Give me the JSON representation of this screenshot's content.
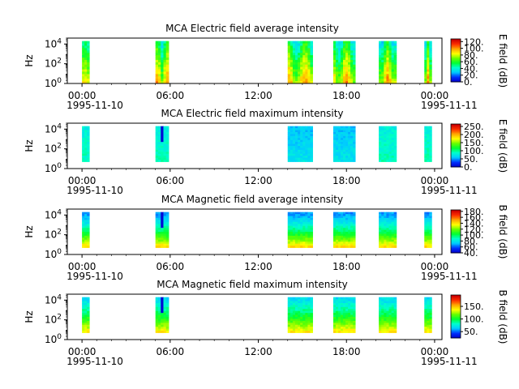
{
  "figure": {
    "date_start": "1995-11-10",
    "date_end": "1995-11-11"
  },
  "chart_data": [
    {
      "type": "heatmap",
      "title": "MCA  Electric field average intensity",
      "ylabel": "Hz",
      "ylim": [
        1,
        40000
      ],
      "y_scale": "log",
      "y_ticks": [
        "10^0",
        "10^2",
        "10^4"
      ],
      "x_ticks": [
        "00:00",
        "06:00",
        "12:00",
        "18:00",
        "00:00"
      ],
      "xlim_hours": [
        -1,
        24.5
      ],
      "colorbar_label": "E field (dB)",
      "colorbar_ticks": [
        "0.",
        "20.",
        "40.",
        "60.",
        "80.",
        "100.",
        "120."
      ],
      "colorbar_range": [
        0,
        128
      ],
      "colormap": [
        "#0000cc",
        "#0033ff",
        "#00ccff",
        "#00ffcc",
        "#00ff33",
        "#66ff00",
        "#ffff00",
        "#ffaa00",
        "#ff3300",
        "#cc0000"
      ],
      "data_segments_hours": [
        [
          0,
          0.5
        ],
        [
          5.0,
          5.9
        ],
        [
          14.0,
          15.7
        ],
        [
          17.1,
          18.6
        ],
        [
          20.2,
          21.4
        ],
        [
          23.3,
          23.8
        ]
      ],
      "texture": "avg-e"
    },
    {
      "type": "heatmap",
      "title": "MCA  Electric field maximum intensity",
      "ylabel": "Hz",
      "ylim": [
        1,
        40000
      ],
      "y_scale": "log",
      "y_ticks": [
        "10^0",
        "10^2",
        "10^4"
      ],
      "x_ticks": [
        "00:00",
        "06:00",
        "12:00",
        "18:00",
        "00:00"
      ],
      "xlim_hours": [
        -1,
        24.5
      ],
      "colorbar_label": "E field (dB)",
      "colorbar_ticks": [
        "0.",
        "50.",
        "100.",
        "150.",
        "200.",
        "250."
      ],
      "colorbar_range": [
        0,
        265
      ],
      "colormap": [
        "#0000cc",
        "#0033ff",
        "#00ccff",
        "#00ffcc",
        "#00ff33",
        "#66ff00",
        "#ffff00",
        "#ffaa00",
        "#ff3300",
        "#cc0000"
      ],
      "data_segments_hours": [
        [
          0,
          0.5
        ],
        [
          5.0,
          5.9
        ],
        [
          14.0,
          15.7
        ],
        [
          17.1,
          18.6
        ],
        [
          20.2,
          21.4
        ],
        [
          23.3,
          23.8
        ]
      ],
      "texture": "max-e"
    },
    {
      "type": "heatmap",
      "title": "MCA  Magnetic field average intensity",
      "ylabel": "Hz",
      "ylim": [
        1,
        40000
      ],
      "y_scale": "log",
      "y_ticks": [
        "10^0",
        "10^2",
        "10^4"
      ],
      "x_ticks": [
        "00:00",
        "06:00",
        "12:00",
        "18:00",
        "00:00"
      ],
      "xlim_hours": [
        -1,
        24.5
      ],
      "colorbar_label": "B field (dB)",
      "colorbar_ticks": [
        "40.",
        "60.",
        "80.",
        "100.",
        "120.",
        "140.",
        "160.",
        "180."
      ],
      "colorbar_range": [
        40,
        185
      ],
      "colormap": [
        "#0000cc",
        "#0033ff",
        "#00ccff",
        "#00ffcc",
        "#00ff33",
        "#66ff00",
        "#ffff00",
        "#ffaa00",
        "#ff3300",
        "#cc0000"
      ],
      "data_segments_hours": [
        [
          0,
          0.5
        ],
        [
          5.0,
          5.9
        ],
        [
          14.0,
          15.7
        ],
        [
          17.1,
          18.6
        ],
        [
          20.2,
          21.4
        ],
        [
          23.3,
          23.8
        ]
      ],
      "texture": "avg-b"
    },
    {
      "type": "heatmap",
      "title": "MCA  Magnetic field maximum intensity",
      "ylabel": "Hz",
      "ylim": [
        1,
        40000
      ],
      "y_scale": "log",
      "y_ticks": [
        "10^0",
        "10^2",
        "10^4"
      ],
      "x_ticks": [
        "00:00",
        "06:00",
        "12:00",
        "18:00",
        "00:00"
      ],
      "xlim_hours": [
        -1,
        24.5
      ],
      "colorbar_label": "B field (dB)",
      "colorbar_ticks": [
        "50.",
        "100.",
        "150."
      ],
      "colorbar_range": [
        25,
        195
      ],
      "colormap": [
        "#0000cc",
        "#0033ff",
        "#00ccff",
        "#00ffcc",
        "#00ff33",
        "#66ff00",
        "#ffff00",
        "#ffaa00",
        "#ff3300",
        "#cc0000"
      ],
      "data_segments_hours": [
        [
          0,
          0.5
        ],
        [
          5.0,
          5.9
        ],
        [
          14.0,
          15.7
        ],
        [
          17.1,
          18.6
        ],
        [
          20.2,
          21.4
        ],
        [
          23.3,
          23.8
        ]
      ],
      "texture": "max-b"
    }
  ]
}
